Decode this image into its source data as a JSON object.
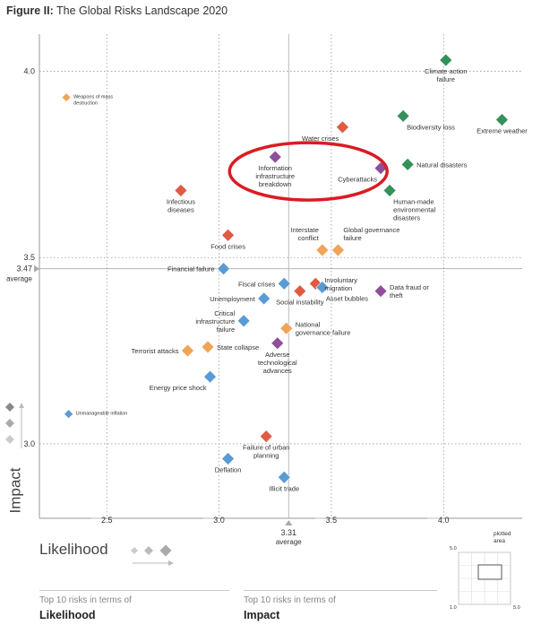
{
  "figure": {
    "title_prefix": "Figure II:",
    "title": "The Global Risks Landscape 2020"
  },
  "colors": {
    "economic": "#5b9bd5",
    "environmental": "#34915b",
    "geopolitical": "#f0a458",
    "societal": "#df5b43",
    "technological": "#8e4f9b",
    "highlight_ellipse": "#d81d23"
  },
  "axes": {
    "x_title": "Likelihood",
    "y_title": "Impact",
    "x_average_value": "3.31",
    "x_average_label": "average",
    "y_average_value": "3.47",
    "y_average_label": "average"
  },
  "footer": {
    "likelihood_caption": "Top 10 risks in terms of",
    "likelihood_title": "Likelihood",
    "impact_caption": "Top 10 risks in terms of",
    "impact_title": "Impact",
    "plotted_area_label": "plotted area",
    "inset_y_top": "5.0",
    "inset_x_left": "1.0",
    "inset_x_right": "5.0"
  },
  "chart_data": {
    "type": "scatter",
    "title": "The Global Risks Landscape 2020",
    "xlabel": "Likelihood",
    "ylabel": "Impact",
    "xlim": [
      2.2,
      4.35
    ],
    "ylim": [
      2.8,
      4.1
    ],
    "x_ticks": [
      "2.5",
      "3.0",
      "3.5",
      "4.0"
    ],
    "y_ticks": [
      "3.0",
      "3.5",
      "4.0"
    ],
    "x_average": 3.31,
    "y_average": 3.47,
    "grid": true,
    "points": [
      {
        "label": "Weapons of mass destruction",
        "x": 2.32,
        "y": 3.93,
        "category": "geopolitical",
        "label_pos": "right-small"
      },
      {
        "label": "Climate action failure",
        "x": 4.01,
        "y": 4.03,
        "category": "environmental",
        "label_pos": "below"
      },
      {
        "label": "Biodiversity loss",
        "x": 3.82,
        "y": 3.88,
        "category": "environmental",
        "label_pos": "below-right"
      },
      {
        "label": "Extreme weather",
        "x": 4.26,
        "y": 3.87,
        "category": "environmental",
        "label_pos": "below"
      },
      {
        "label": "Water crises",
        "x": 3.55,
        "y": 3.85,
        "category": "societal",
        "label_pos": "below-left"
      },
      {
        "label": "Natural disasters",
        "x": 3.84,
        "y": 3.75,
        "category": "environmental",
        "label_pos": "right"
      },
      {
        "label": "Cyberattacks",
        "x": 3.72,
        "y": 3.74,
        "category": "technological",
        "label_pos": "below-left"
      },
      {
        "label": "Information infrastructure breakdown",
        "x": 3.25,
        "y": 3.77,
        "category": "technological",
        "label_pos": "below"
      },
      {
        "label": "Human-made environmental disasters",
        "x": 3.76,
        "y": 3.68,
        "category": "environmental",
        "label_pos": "below-right"
      },
      {
        "label": "Infectious diseases",
        "x": 2.83,
        "y": 3.68,
        "category": "societal",
        "label_pos": "below"
      },
      {
        "label": "Food crises",
        "x": 3.04,
        "y": 3.56,
        "category": "societal",
        "label_pos": "below"
      },
      {
        "label": "Interstate conflict",
        "x": 3.46,
        "y": 3.52,
        "category": "geopolitical",
        "label_pos": "above-left"
      },
      {
        "label": "Global governance failure",
        "x": 3.53,
        "y": 3.52,
        "category": "geopolitical",
        "label_pos": "above-right"
      },
      {
        "label": "Financial failure",
        "x": 3.02,
        "y": 3.47,
        "category": "economic",
        "label_pos": "left"
      },
      {
        "label": "Fiscal crises",
        "x": 3.29,
        "y": 3.43,
        "category": "economic",
        "label_pos": "left"
      },
      {
        "label": "Involuntary migration",
        "x": 3.43,
        "y": 3.43,
        "category": "societal",
        "label_pos": "right"
      },
      {
        "label": "Asset bubbles",
        "x": 3.46,
        "y": 3.42,
        "category": "economic",
        "label_pos": "below-right"
      },
      {
        "label": "Data fraud or theft",
        "x": 3.72,
        "y": 3.41,
        "category": "technological",
        "label_pos": "right"
      },
      {
        "label": "Unemployment",
        "x": 3.2,
        "y": 3.39,
        "category": "economic",
        "label_pos": "left"
      },
      {
        "label": "Social instability",
        "x": 3.36,
        "y": 3.41,
        "category": "societal",
        "label_pos": "below"
      },
      {
        "label": "Critical infrastructure failure",
        "x": 3.11,
        "y": 3.33,
        "category": "economic",
        "label_pos": "left"
      },
      {
        "label": "National governance failure",
        "x": 3.3,
        "y": 3.31,
        "category": "geopolitical",
        "label_pos": "right"
      },
      {
        "label": "State collapse",
        "x": 2.95,
        "y": 3.26,
        "category": "geopolitical",
        "label_pos": "right"
      },
      {
        "label": "Terrorist attacks",
        "x": 2.86,
        "y": 3.25,
        "category": "geopolitical",
        "label_pos": "left"
      },
      {
        "label": "Adverse technological advances",
        "x": 3.26,
        "y": 3.27,
        "category": "technological",
        "label_pos": "below"
      },
      {
        "label": "Energy price shock",
        "x": 2.96,
        "y": 3.18,
        "category": "economic",
        "label_pos": "below-left"
      },
      {
        "label": "Unmanageable inflation",
        "x": 2.33,
        "y": 3.08,
        "category": "economic",
        "label_pos": "right-small"
      },
      {
        "label": "Failure of urban planning",
        "x": 3.21,
        "y": 3.02,
        "category": "societal",
        "label_pos": "below"
      },
      {
        "label": "Deflation",
        "x": 3.04,
        "y": 2.96,
        "category": "economic",
        "label_pos": "below"
      },
      {
        "label": "Illicit trade",
        "x": 3.29,
        "y": 2.91,
        "category": "economic",
        "label_pos": "below"
      }
    ],
    "highlight": {
      "label": "Information infrastructure breakdown",
      "shape": "ellipse"
    }
  }
}
